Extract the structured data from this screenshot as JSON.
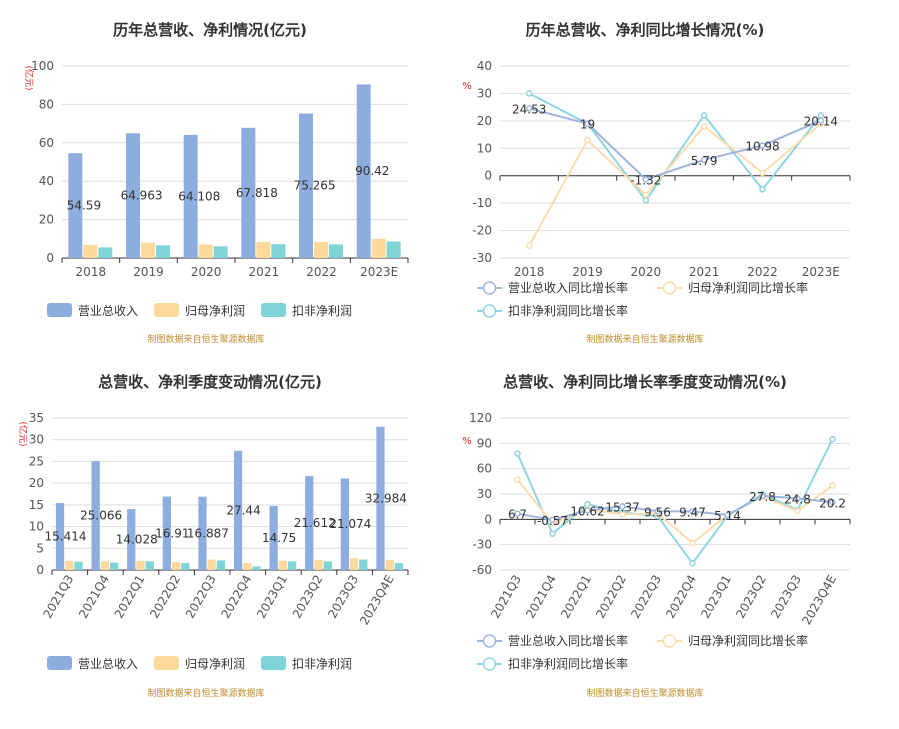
{
  "colors": {
    "revenue": "#8eaddf",
    "parent_profit": "#fdd99b",
    "deducted_profit": "#7fd4d8",
    "revenue_line": "#9fb5e0",
    "parent_line": "#fbdcae",
    "deducted_line": "#8dd6e2",
    "axis_unit": "#e02020",
    "source": "#c08a2a",
    "title": "#333333",
    "tick": "#555555",
    "grid": "#dddddd"
  },
  "source_note": "制图数据来自恒生聚源数据库",
  "chart_data": [
    {
      "id": "annual_amount",
      "type": "bar",
      "title": "历年总营收、净利情况(亿元)",
      "ylabel": "(亿元)",
      "ylim": [
        0,
        100
      ],
      "yticks": [
        0,
        20,
        40,
        60,
        80,
        100
      ],
      "categories": [
        "2018",
        "2019",
        "2020",
        "2021",
        "2022",
        "2023E"
      ],
      "series": [
        {
          "name": "营业总收入",
          "values": [
            54.59,
            64.963,
            64.108,
            67.818,
            75.265,
            90.42
          ],
          "labels": [
            "54.59",
            "64.963",
            "64.108",
            "67.818",
            "75.265",
            "90.42"
          ]
        },
        {
          "name": "归母净利润",
          "values": [
            6.8,
            7.9,
            7.0,
            8.3,
            8.4,
            10.0
          ]
        },
        {
          "name": "扣非净利润",
          "values": [
            5.5,
            6.6,
            6.1,
            7.2,
            7.1,
            8.6
          ]
        }
      ]
    },
    {
      "id": "annual_growth",
      "type": "line",
      "title": "历年总营收、净利同比增长情况(%)",
      "ylabel": "%",
      "ylim": [
        -30,
        40
      ],
      "yticks": [
        -30,
        -20,
        -10,
        0,
        10,
        20,
        30,
        40
      ],
      "categories": [
        "2018",
        "2019",
        "2020",
        "2021",
        "2022",
        "2023E"
      ],
      "series": [
        {
          "name": "营业总收入同比增长率",
          "values": [
            24.53,
            19,
            -1.32,
            5.79,
            10.98,
            20.14
          ],
          "labels": [
            "24.53",
            "19",
            "-1.32",
            "5.79",
            "10.98",
            "20.14"
          ]
        },
        {
          "name": "归母净利润同比增长率",
          "values": [
            -25.5,
            13,
            -7,
            18,
            1,
            19
          ]
        },
        {
          "name": "扣非净利润同比增长率",
          "values": [
            30,
            19,
            -9,
            22,
            -5,
            22
          ]
        }
      ]
    },
    {
      "id": "quarterly_amount",
      "type": "bar",
      "title": "总营收、净利季度变动情况(亿元)",
      "ylabel": "(亿元)",
      "ylim": [
        0,
        35
      ],
      "yticks": [
        0,
        5,
        10,
        15,
        20,
        25,
        30,
        35
      ],
      "categories": [
        "2021Q3",
        "2021Q4",
        "2022Q1",
        "2022Q2",
        "2022Q3",
        "2022Q4",
        "2023Q1",
        "2023Q2",
        "2023Q3",
        "2023Q4E"
      ],
      "series": [
        {
          "name": "营业总收入",
          "values": [
            15.414,
            25.066,
            14.028,
            16.91,
            16.887,
            27.44,
            14.75,
            21.612,
            21.074,
            32.984
          ],
          "labels": [
            "15.414",
            "25.066",
            "14.028",
            "16.91",
            "16.887",
            "27.44",
            "14.75",
            "21.612",
            "21.074",
            "32.984"
          ]
        },
        {
          "name": "归母净利润",
          "values": [
            2.1,
            2.0,
            2.1,
            1.8,
            2.4,
            1.6,
            2.1,
            2.3,
            2.7,
            2.3
          ]
        },
        {
          "name": "扣非净利润",
          "values": [
            1.9,
            1.7,
            2.0,
            1.6,
            2.2,
            0.8,
            2.0,
            2.0,
            2.4,
            1.6
          ]
        }
      ]
    },
    {
      "id": "quarterly_growth",
      "type": "line",
      "title": "总营收、净利同比增长率季度变动情况(%)",
      "ylabel": "%",
      "ylim": [
        -60,
        120
      ],
      "yticks": [
        -60,
        -30,
        0,
        30,
        60,
        90,
        120
      ],
      "categories": [
        "2021Q3",
        "2021Q4",
        "2022Q1",
        "2022Q2",
        "2022Q3",
        "2022Q4",
        "2023Q1",
        "2023Q2",
        "2023Q3",
        "2023Q4E"
      ],
      "series": [
        {
          "name": "营业总收入同比增长率",
          "values": [
            6.7,
            -0.57,
            10.62,
            15.37,
            9.56,
            9.47,
            5.14,
            27.8,
            24.8,
            20.2
          ],
          "labels": [
            "6.7",
            "-0.57",
            "10.62",
            "15.37",
            "9.56",
            "9.47",
            "5.14",
            "27.8",
            "24.8",
            "20.2"
          ]
        },
        {
          "name": "归母净利润同比增长率",
          "values": [
            47,
            -5,
            12,
            6,
            7,
            -28,
            5,
            27,
            10,
            40
          ]
        },
        {
          "name": "扣非净利润同比增长率",
          "values": [
            78,
            -17,
            18,
            8,
            4,
            -52,
            4,
            30,
            11,
            95
          ]
        }
      ]
    }
  ]
}
